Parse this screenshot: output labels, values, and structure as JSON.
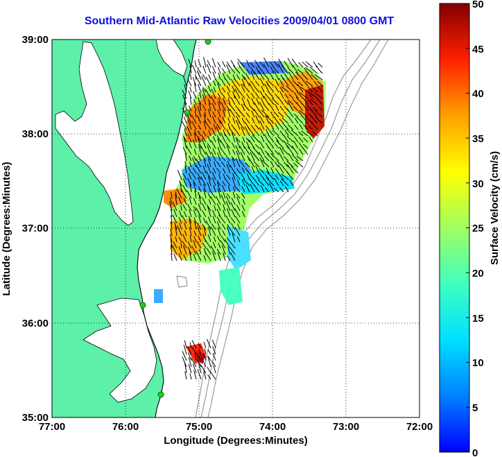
{
  "title": "Southern Mid-Atlantic Raw Velocities 2009/04/01 0800 GMT",
  "xlabel": "Longitude (Degrees:Minutes)",
  "ylabel": "Latitude (Degrees:Minutes)",
  "colorbar_label": "Surface Velocity (cm/s)",
  "x_ticks": [
    "77:00",
    "76:00",
    "75:00",
    "74:00",
    "73:00",
    "72:00"
  ],
  "y_ticks": [
    "39:00",
    "38:00",
    "37:00",
    "36:00",
    "35:00"
  ],
  "colorbar_ticks": [
    "50",
    "45",
    "40",
    "35",
    "30",
    "25",
    "20",
    "15",
    "10",
    "5",
    "0"
  ],
  "colors": {
    "land": "#5cf0a8",
    "water": "#ffffff",
    "title": "#1010e0",
    "bathymetry": "#9a9a9a",
    "station": "#22cc22"
  },
  "chart_data": {
    "type": "heatmap",
    "x_range": [
      -77,
      -72
    ],
    "y_range": [
      35,
      39
    ],
    "value_range": [
      0,
      50
    ],
    "units": "cm/s"
  }
}
